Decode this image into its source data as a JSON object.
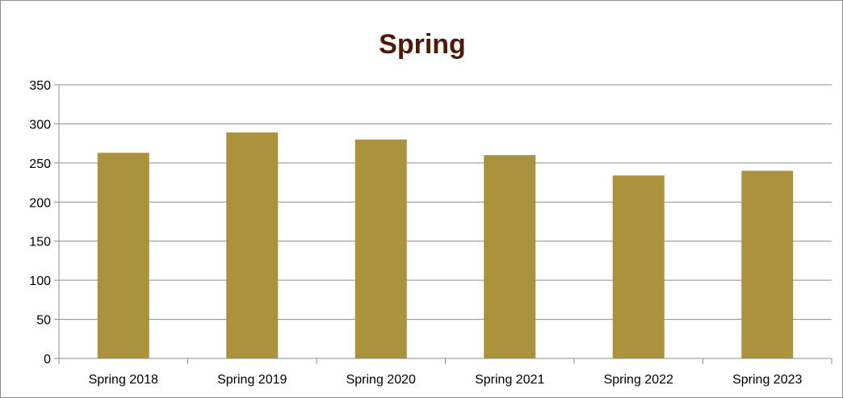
{
  "colors": {
    "bar": "#ab923d",
    "title": "#4d1a09",
    "gridline": "#8c8c8c",
    "axis": "#8c8c8c",
    "frame": "#8c8c8c",
    "background": "#ffffff"
  },
  "chart_data": {
    "type": "bar",
    "title": "Spring",
    "xlabel": "",
    "ylabel": "",
    "categories": [
      "Spring 2018",
      "Spring 2019",
      "Spring 2020",
      "Spring 2021",
      "Spring 2022",
      "Spring 2023"
    ],
    "values": [
      263,
      289,
      280,
      260,
      234,
      240
    ],
    "ylim": [
      0,
      350
    ],
    "yticks": [
      0,
      50,
      100,
      150,
      200,
      250,
      300,
      350
    ],
    "grid": true,
    "legend": "none"
  }
}
